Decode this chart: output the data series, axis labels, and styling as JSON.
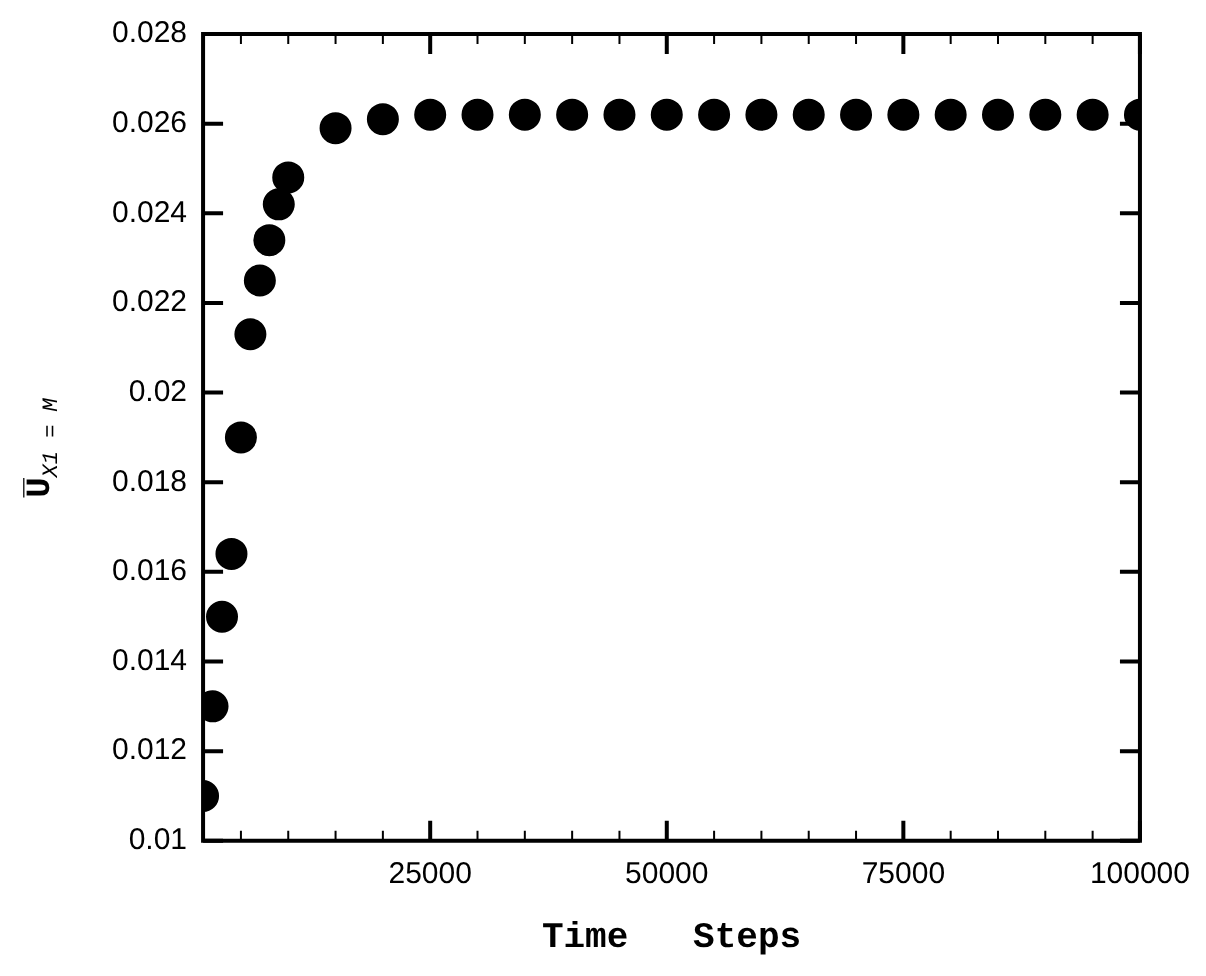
{
  "chart_data": {
    "type": "scatter",
    "xlabel": "Time   Steps",
    "ylabel": "U̅$_{X1 = M}$",
    "x": [
      1000,
      2000,
      3000,
      4000,
      5000,
      6000,
      7000,
      8000,
      9000,
      10000,
      15000,
      20000,
      25000,
      30000,
      35000,
      40000,
      45000,
      50000,
      55000,
      60000,
      65000,
      70000,
      75000,
      80000,
      85000,
      90000,
      95000,
      100000
    ],
    "series": [
      {
        "color": "#000000",
        "values": [
          0.011,
          0.013,
          0.015,
          0.0164,
          0.019,
          0.0213,
          0.0225,
          0.0234,
          0.0242,
          0.0248,
          0.0259,
          0.0261,
          0.0262,
          0.0262,
          0.0262,
          0.0262,
          0.0262,
          0.0262,
          0.0262,
          0.0262,
          0.0262,
          0.0262,
          0.0262,
          0.0262,
          0.0262,
          0.0262,
          0.0262,
          0.0262
        ]
      }
    ],
    "xlim": [
      1000,
      100000
    ],
    "xticks": [
      {
        "value": 5000,
        "label": null
      },
      {
        "value": 10000,
        "label": null
      },
      {
        "value": 15000,
        "label": null
      },
      {
        "value": 20000,
        "label": null
      },
      25000,
      {
        "value": 30000,
        "label": null
      },
      {
        "value": 35000,
        "label": null
      },
      {
        "value": 40000,
        "label": null
      },
      {
        "value": 45000,
        "label": null
      },
      50000,
      {
        "value": 55000,
        "label": null
      },
      {
        "value": 60000,
        "label": null
      },
      {
        "value": 65000,
        "label": null
      },
      {
        "value": 70000,
        "label": null
      },
      75000,
      {
        "value": 80000,
        "label": null
      },
      {
        "value": 85000,
        "label": null
      },
      {
        "value": 90000,
        "label": null
      },
      {
        "value": 95000,
        "label": null
      },
      100000
    ],
    "ylim": [
      0.01,
      0.028
    ],
    "yticks": [
      0.01,
      0.012,
      0.014,
      0.016,
      0.018,
      0.02,
      0.022,
      0.024,
      0.026,
      0.028
    ],
    "marker": "circle",
    "grid": false,
    "legend": false
  }
}
